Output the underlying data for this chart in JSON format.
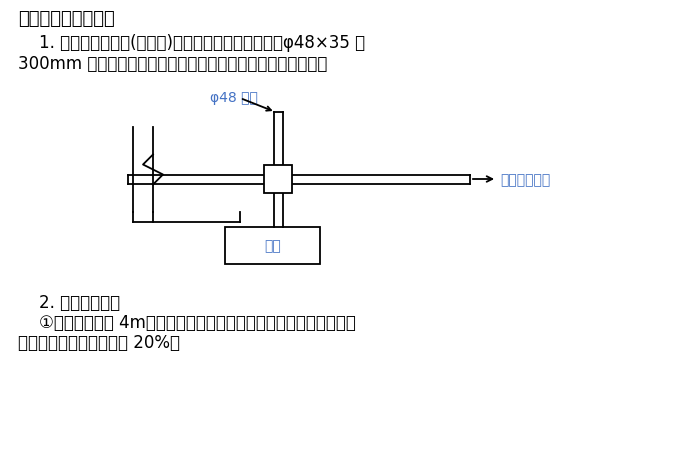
{
  "title": "六、脚手架连墙件：",
  "para1_line1": "    1. 采用刚型连墙杆(硬拉接)：在建筑物圈梁上部预埋φ48×35 长",
  "para1_line2": "300mm 的钢管，并与脚手架小横杆用扣件直接连接。如下图：",
  "label_pipe": "φ48 钢管",
  "label_ring_beam": "圈梁",
  "label_connect": "与脚手架相连",
  "para2_title": "    2. 连墙件布置：",
  "para2_body": "    ①水平间距小于 4m，竖向间距每层楼高。排列形式矩形。转角处必",
  "para2_body2": "须设置，顶层连墙杆加密 20%。",
  "bg_color": "#ffffff",
  "text_color": "#000000",
  "title_fontsize": 13,
  "body_fontsize": 12,
  "small_fontsize": 10,
  "diagram_color": "#000000",
  "label_color": "#4472c4"
}
